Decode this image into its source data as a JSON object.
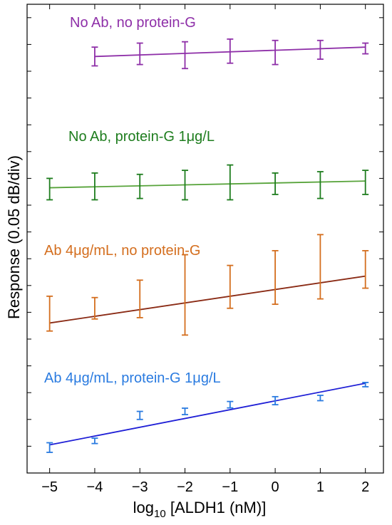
{
  "chart_data": {
    "type": "line",
    "xlabel_prefix": "log",
    "xlabel_sub": "10",
    "xlabel_rest": " [ALDH1 (nM)]",
    "ylabel": "Response (0.05 dB/div)",
    "x_ticks": [
      "−5",
      "−4",
      "−3",
      "−2",
      "−1",
      "0",
      "1",
      "2"
    ],
    "xlim": [
      -5.5,
      2.4
    ],
    "ylim": [
      0,
      17.5
    ],
    "grid": false,
    "series": [
      {
        "name": "No Ab, no protein-G",
        "color": "#8e2fa8",
        "line_color": "#8e2fa8",
        "x": [
          -4,
          -3,
          -2,
          -1,
          0,
          1,
          2
        ],
        "y": [
          15.55,
          15.65,
          15.6,
          15.75,
          15.7,
          15.8,
          15.85
        ],
        "err": [
          0.35,
          0.4,
          0.5,
          0.45,
          0.45,
          0.35,
          0.2
        ],
        "fit": [
          [
            -4,
            15.55
          ],
          [
            2,
            15.9
          ]
        ]
      },
      {
        "name": "No Ab, protein-G 1μg/L",
        "color": "#1e7d1e",
        "line_color": "#57a33a",
        "x": [
          -5,
          -4,
          -3,
          -2,
          -1,
          0,
          1,
          2
        ],
        "y": [
          10.6,
          10.7,
          10.7,
          10.75,
          10.85,
          10.8,
          10.75,
          10.85
        ],
        "err": [
          0.4,
          0.5,
          0.45,
          0.55,
          0.65,
          0.4,
          0.5,
          0.45
        ],
        "fit": [
          [
            -5,
            10.65
          ],
          [
            2,
            10.9
          ]
        ]
      },
      {
        "name": "Ab 4μg/mL, no protein-G",
        "color": "#d46e1e",
        "line_color": "#8a2a14",
        "x": [
          -5,
          -4,
          -3,
          -2,
          -1,
          0,
          1,
          2
        ],
        "y": [
          5.95,
          6.15,
          6.5,
          6.65,
          6.95,
          7.3,
          7.7,
          7.6
        ],
        "err": [
          0.65,
          0.4,
          0.7,
          1.5,
          0.8,
          1.0,
          1.2,
          0.7
        ],
        "fit": [
          [
            -5,
            5.6
          ],
          [
            2,
            7.35
          ]
        ]
      },
      {
        "name": "Ab 4μg/mL, protein-G 1μg/L",
        "color": "#2a7be0",
        "line_color": "#1f1fd6",
        "x": [
          -5,
          -4,
          -3,
          -2,
          -1,
          0,
          1,
          2
        ],
        "y": [
          0.95,
          1.2,
          2.15,
          2.3,
          2.55,
          2.7,
          2.8,
          3.3
        ],
        "err": [
          0.18,
          0.1,
          0.15,
          0.12,
          0.12,
          0.15,
          0.1,
          0.08
        ],
        "fit": [
          [
            -5,
            1.05
          ],
          [
            2,
            3.35
          ]
        ]
      }
    ]
  }
}
